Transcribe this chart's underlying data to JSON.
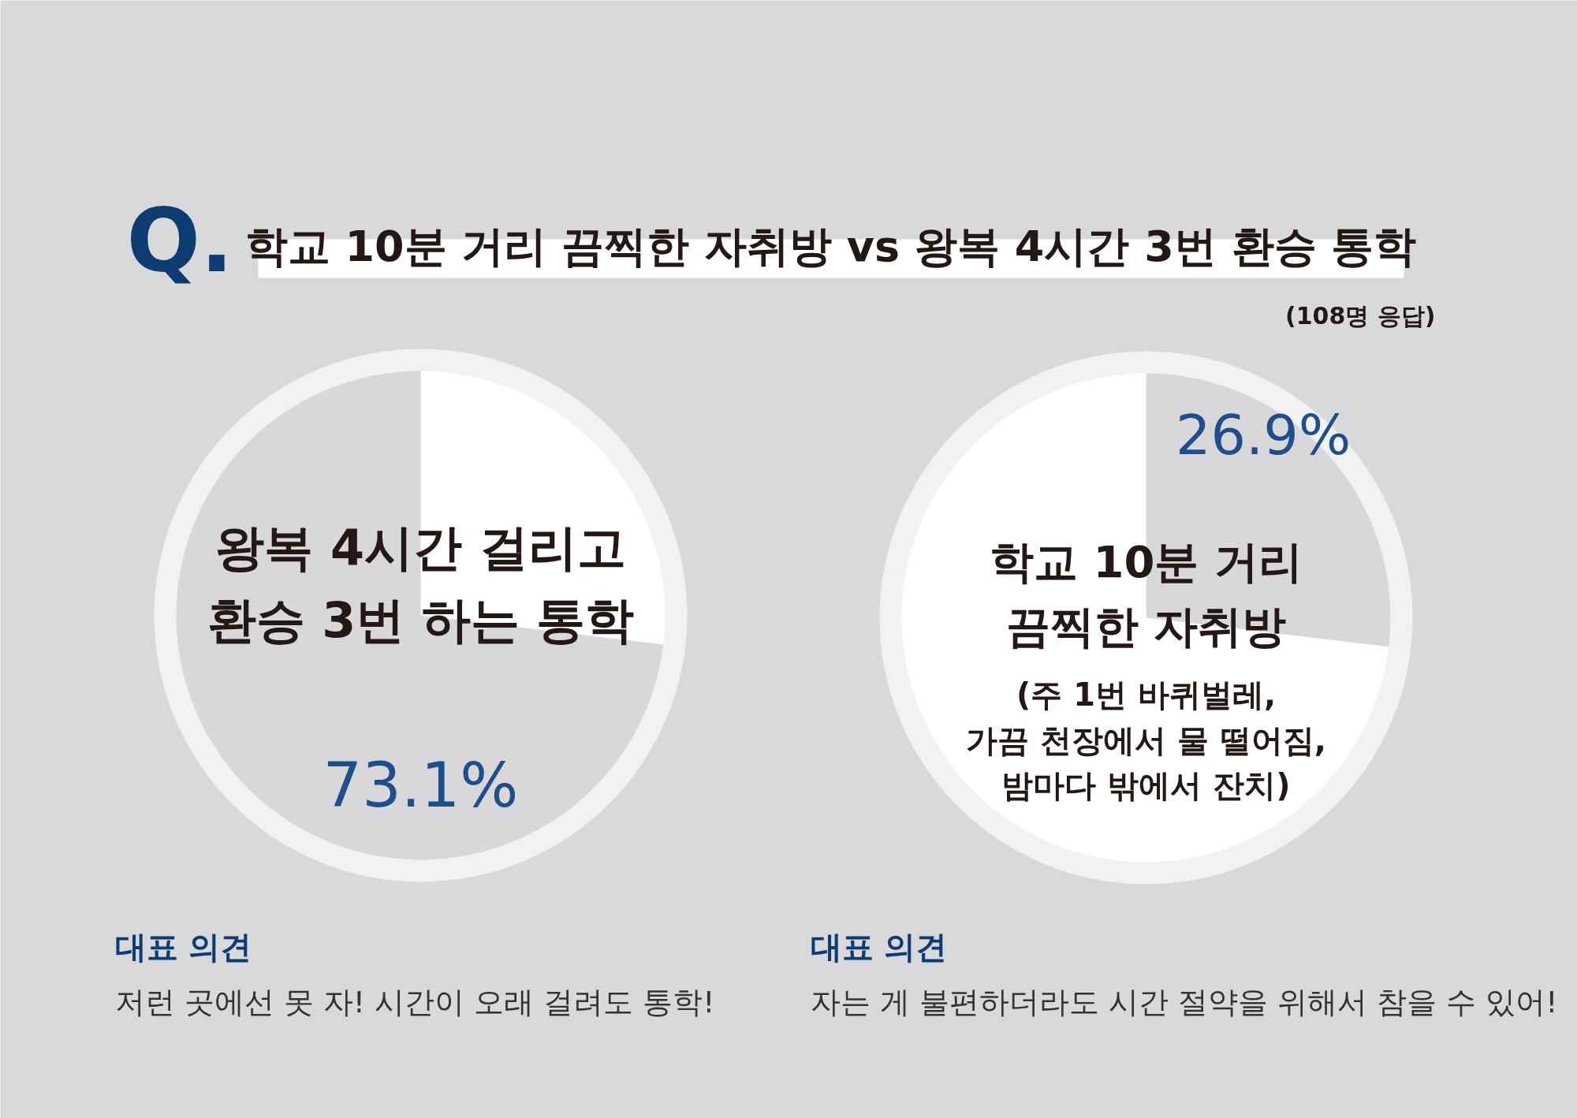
{
  "chart_data": [
    {
      "type": "pie",
      "title": "학교 10분 거리 끔찍한 자취방 vs 왕복 4시간 3번 환승 통학",
      "categories": [
        null,
        "왕복 4시간 걸리고\n환승 3번 하는 통학"
      ],
      "values": [
        26.9,
        73.1
      ],
      "colors": [
        "#ffffff",
        "#d8d8da"
      ],
      "value_labels": [
        null,
        "73.1%"
      ],
      "annotations": [
        "Q.",
        "대표 의견",
        "저런 곳에선 못 자! 시간이 오래 걸려도 통학!"
      ]
    },
    {
      "type": "pie",
      "subtitle": "(108명 응답)",
      "categories": [
        "학교 10분 거리\n끔찍한 자취방",
        null
      ],
      "values": [
        26.9,
        73.1
      ],
      "colors": [
        "#d8d8da",
        "#ffffff"
      ],
      "value_labels": [
        "26.9%",
        null
      ],
      "annotations": [
        "(주 1번 바퀴벌레,\n가끔 천장에서 물 떨어짐,\n밤마다 밖에서 잔치)",
        "대표 의견",
        "자는 게 불편하더라도 시간 절약을 위해서 참을 수 있어!"
      ]
    }
  ]
}
